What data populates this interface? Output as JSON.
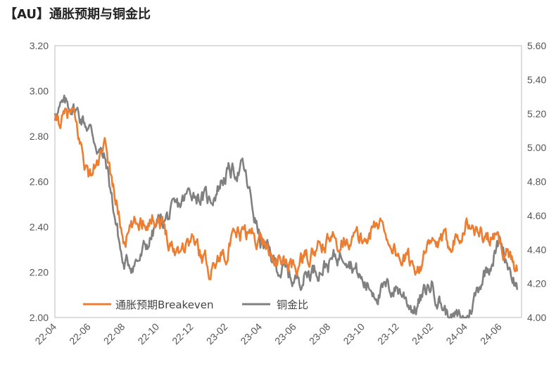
{
  "title": "【AU】通胀预期与铜金比",
  "chart_data": {
    "type": "line",
    "x_ticks": [
      "22-04",
      "22-06",
      "22-08",
      "22-10",
      "22-12",
      "23-02",
      "23-04",
      "23-06",
      "23-08",
      "23-10",
      "23-12",
      "24-02",
      "24-04",
      "24-06"
    ],
    "y_left": {
      "ylim": [
        2.0,
        3.2
      ],
      "ticks": [
        "2.00",
        "2.20",
        "2.40",
        "2.60",
        "2.80",
        "3.00",
        "3.20"
      ]
    },
    "y_right": {
      "ylim": [
        4.0,
        5.6
      ],
      "ticks": [
        "4.00",
        "4.20",
        "4.40",
        "4.60",
        "4.80",
        "5.00",
        "5.20",
        "5.40",
        "5.60"
      ]
    },
    "legend_position": "bottom-left",
    "series": [
      {
        "name": "通胀预期Breakeven",
        "axis": "left",
        "color": "#ED7D31",
        "x": [
          "22-04",
          "22-05",
          "22-06",
          "22-07",
          "22-08",
          "22-09",
          "22-10",
          "22-11",
          "22-12",
          "23-01",
          "23-02",
          "23-03",
          "23-04",
          "23-05",
          "23-06",
          "23-07",
          "23-08",
          "23-09",
          "23-10",
          "23-11",
          "23-12",
          "24-01",
          "24-02",
          "24-03",
          "24-04",
          "24-05",
          "24-06",
          "24-07"
        ],
        "values": [
          2.85,
          2.9,
          2.62,
          2.74,
          2.35,
          2.43,
          2.45,
          2.3,
          2.35,
          2.22,
          2.3,
          2.38,
          2.35,
          2.25,
          2.22,
          2.28,
          2.33,
          2.36,
          2.34,
          2.42,
          2.28,
          2.22,
          2.31,
          2.33,
          2.42,
          2.36,
          2.33,
          2.22
        ]
      },
      {
        "name": "铜金比",
        "axis": "right",
        "color": "#808080",
        "x": [
          "22-04",
          "22-05",
          "22-06",
          "22-07",
          "22-08",
          "22-09",
          "22-10",
          "22-11",
          "22-12",
          "23-01",
          "23-02",
          "23-03",
          "23-04",
          "23-05",
          "23-06",
          "23-07",
          "23-08",
          "23-09",
          "23-10",
          "23-11",
          "23-12",
          "24-01",
          "24-02",
          "24-03",
          "24-04",
          "24-05",
          "24-06",
          "24-07"
        ],
        "values": [
          5.22,
          5.25,
          5.12,
          4.9,
          4.3,
          4.35,
          4.55,
          4.62,
          4.75,
          4.68,
          4.85,
          4.88,
          4.45,
          4.3,
          4.22,
          4.28,
          4.32,
          4.4,
          4.2,
          4.15,
          4.18,
          4.05,
          4.2,
          4.0,
          3.98,
          4.25,
          4.45,
          4.18
        ]
      }
    ]
  }
}
